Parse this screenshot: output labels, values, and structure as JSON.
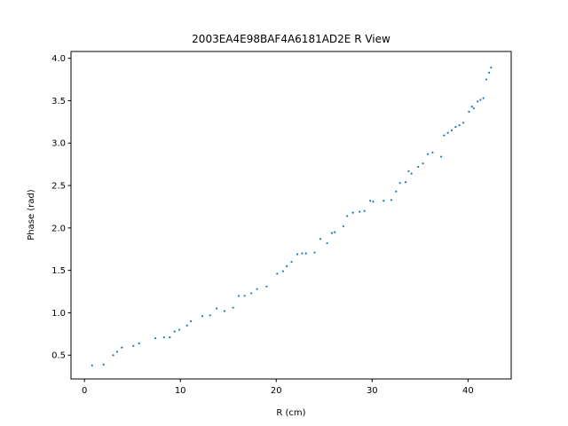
{
  "chart_data": {
    "type": "scatter",
    "title": "2003EA4E98BAF4A6181AD2E R View",
    "xlabel": "R (cm)",
    "ylabel": "Phase (rad)",
    "xlim": [
      -1.4,
      44.5
    ],
    "ylim": [
      0.22,
      4.08
    ],
    "xticks": [
      0,
      10,
      20,
      30,
      40
    ],
    "yticks": [
      0.5,
      1.0,
      1.5,
      2.0,
      2.5,
      3.0,
      3.5,
      4.0
    ],
    "xtick_labels": [
      "0",
      "10",
      "20",
      "30",
      "40"
    ],
    "ytick_labels": [
      "0.5",
      "1.0",
      "1.5",
      "2.0",
      "2.5",
      "3.0",
      "3.5",
      "4.0"
    ],
    "grid": false,
    "marker_color": "#1f77b4",
    "series": [
      {
        "x": [
          0.8,
          2.0,
          3.0,
          3.4,
          3.9,
          5.1,
          5.7,
          7.4,
          8.3,
          8.9,
          9.4,
          9.9,
          10.7,
          11.1,
          12.3,
          13.1,
          13.8,
          14.6,
          15.5,
          16.1,
          16.7,
          17.4,
          18.0,
          19.0,
          20.1,
          20.7,
          21.1,
          21.6,
          22.2,
          22.7,
          23.1,
          24.0,
          24.6,
          25.3,
          25.8,
          26.1,
          27.0,
          27.4,
          28.0,
          28.7,
          29.2,
          29.8,
          30.1,
          31.2,
          32.0,
          32.5,
          32.9,
          33.5,
          33.8,
          34.1,
          34.8,
          35.3,
          35.8,
          36.3,
          37.2,
          37.5,
          37.9,
          38.3,
          38.7,
          39.1,
          39.5,
          40.1,
          40.4,
          40.6,
          41.0,
          41.3,
          41.6,
          41.9,
          42.2,
          42.4
        ],
        "y": [
          0.38,
          0.39,
          0.5,
          0.54,
          0.59,
          0.61,
          0.64,
          0.7,
          0.71,
          0.71,
          0.78,
          0.8,
          0.85,
          0.9,
          0.96,
          0.97,
          1.05,
          1.02,
          1.06,
          1.2,
          1.2,
          1.23,
          1.28,
          1.31,
          1.46,
          1.49,
          1.55,
          1.6,
          1.69,
          1.7,
          1.7,
          1.71,
          1.87,
          1.82,
          1.94,
          1.95,
          2.02,
          2.14,
          2.18,
          2.19,
          2.2,
          2.32,
          2.31,
          2.32,
          2.33,
          2.43,
          2.53,
          2.54,
          2.67,
          2.64,
          2.72,
          2.76,
          2.87,
          2.89,
          2.84,
          3.09,
          3.12,
          3.15,
          3.19,
          3.21,
          3.24,
          3.37,
          3.43,
          3.41,
          3.49,
          3.51,
          3.53,
          3.75,
          3.83,
          3.89
        ]
      }
    ]
  }
}
